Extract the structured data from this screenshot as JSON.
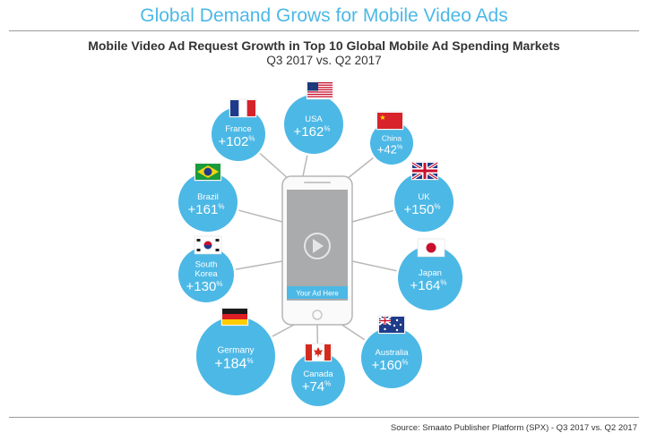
{
  "header": {
    "title": "Global Demand Grows for Mobile Video Ads",
    "subtitle": "Mobile Video Ad Request Growth in Top 10 Global Mobile Ad Spending Markets",
    "period": "Q3 2017 vs. Q2 2017"
  },
  "phone": {
    "ad_label": "Your Ad Here"
  },
  "markets": [
    {
      "id": "usa",
      "name": [
        "USA"
      ],
      "value": 162,
      "flag": "usa"
    },
    {
      "id": "france",
      "name": [
        "France"
      ],
      "value": 102,
      "flag": "france"
    },
    {
      "id": "china",
      "name": [
        "China"
      ],
      "value": 42,
      "flag": "china"
    },
    {
      "id": "brazil",
      "name": [
        "Brazil"
      ],
      "value": 161,
      "flag": "brazil"
    },
    {
      "id": "uk",
      "name": [
        "UK"
      ],
      "value": 150,
      "flag": "uk"
    },
    {
      "id": "south-korea",
      "name": [
        "South",
        "Korea"
      ],
      "value": 130,
      "flag": "south-korea"
    },
    {
      "id": "japan",
      "name": [
        "Japan"
      ],
      "value": 164,
      "flag": "japan"
    },
    {
      "id": "germany",
      "name": [
        "Germany"
      ],
      "value": 184,
      "flag": "germany"
    },
    {
      "id": "canada",
      "name": [
        "Canada"
      ],
      "value": 74,
      "flag": "canada"
    },
    {
      "id": "australia",
      "name": [
        "Australia"
      ],
      "value": 160,
      "flag": "australia"
    }
  ],
  "colors": {
    "bubble": "#4cb8e6",
    "title": "#4cb8e6",
    "connector": "#b8b8b8"
  },
  "footer": {
    "source": "Source: Smaato Publisher Platform (SPX) - Q3 2017 vs. Q2 2017"
  }
}
